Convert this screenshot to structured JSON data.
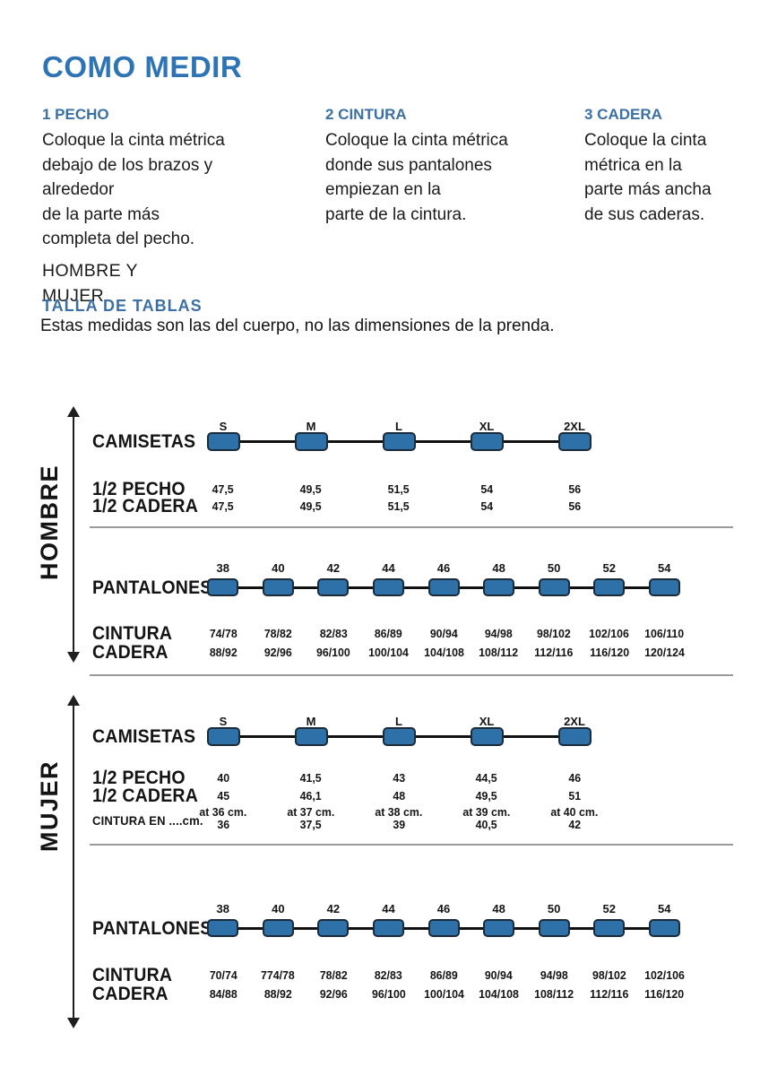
{
  "title": "COMO MEDIR",
  "theme": {
    "title_color": "#2E74B5",
    "heading_color": "#3C70A4",
    "pill_fill": "#2E70A8",
    "pill_border": "#1C2B3A",
    "track_color": "#111111",
    "text_color": "#1B1B1B"
  },
  "instructions": [
    {
      "heading": "1 PECHO",
      "lines": [
        "Coloque la cinta métrica",
        "debajo de los brazos y",
        "alrededor",
        "de la parte más",
        "completa del pecho."
      ],
      "note_lines": [
        "HOMBRE Y",
        "MUJER"
      ]
    },
    {
      "heading": "2 CINTURA",
      "lines": [
        "Coloque la cinta métrica",
        "donde sus pantalones",
        "empiezan en la",
        "parte de la cintura."
      ]
    },
    {
      "heading": "3 CADERA",
      "lines": [
        "Coloque la cinta",
        "métrica en  la",
        "parte más ancha",
        "de sus caderas."
      ]
    }
  ],
  "size_tables": {
    "heading": "TALLA DE TABLAS",
    "note": "Estas medidas son las del cuerpo, no las dimensiones de la prenda."
  },
  "groups": [
    {
      "label": "HOMBRE",
      "sliders": [
        {
          "name": "camisetas",
          "row_label": "CAMISETAS",
          "sizes": [
            "S",
            "M",
            "L",
            "XL",
            "2XL"
          ],
          "value_rows": [
            {
              "label": "1/2 PECHO",
              "values": [
                "47,5",
                "49,5",
                "51,5",
                "54",
                "56"
              ]
            },
            {
              "label": "1/2 CADERA",
              "values": [
                "47,5",
                "49,5",
                "51,5",
                "54",
                "56"
              ]
            }
          ]
        },
        {
          "name": "pantalones",
          "row_label": "PANTALONES",
          "sizes": [
            "38",
            "40",
            "42",
            "44",
            "46",
            "48",
            "50",
            "52",
            "54"
          ],
          "value_rows": [
            {
              "label": "CINTURA",
              "values": [
                "74/78",
                "78/82",
                "82/83",
                "86/89",
                "90/94",
                "94/98",
                "98/102",
                "102/106",
                "106/110"
              ]
            },
            {
              "label": "CADERA",
              "values": [
                "88/92",
                "92/96",
                "96/100",
                "100/104",
                "104/108",
                "108/112",
                "112/116",
                "116/120",
                "120/124"
              ]
            }
          ]
        }
      ]
    },
    {
      "label": "MUJER",
      "sliders": [
        {
          "name": "camisetas",
          "row_label": "CAMISETAS",
          "sizes": [
            "S",
            "M",
            "L",
            "XL",
            "2XL"
          ],
          "value_rows": [
            {
              "label": "1/2 PECHO",
              "values": [
                "40",
                "41,5",
                "43",
                "44,5",
                "46"
              ]
            },
            {
              "label": "1/2 CADERA",
              "values": [
                "45",
                "46,1",
                "48",
                "49,5",
                "51"
              ]
            },
            {
              "label": "",
              "values": [
                "at 36 cm.",
                "at 37 cm.",
                "at 38 cm.",
                "at 39 cm.",
                "at 40 cm."
              ]
            },
            {
              "label": "CINTURA EN ....cm.",
              "small_label": true,
              "values": [
                "36",
                "37,5",
                "39",
                "40,5",
                "42"
              ]
            }
          ]
        },
        {
          "name": "pantalones",
          "row_label": "PANTALONES",
          "sizes": [
            "38",
            "40",
            "42",
            "44",
            "46",
            "48",
            "50",
            "52",
            "54"
          ],
          "value_rows": [
            {
              "label": "CINTURA",
              "values": [
                "70/74",
                "774/78",
                "78/82",
                "82/83",
                "86/89",
                "90/94",
                "94/98",
                "98/102",
                "102/106"
              ]
            },
            {
              "label": "CADERA",
              "values": [
                "84/88",
                "88/92",
                "92/96",
                "96/100",
                "100/104",
                "104/108",
                "108/112",
                "112/116",
                "116/120"
              ]
            }
          ]
        }
      ]
    }
  ]
}
